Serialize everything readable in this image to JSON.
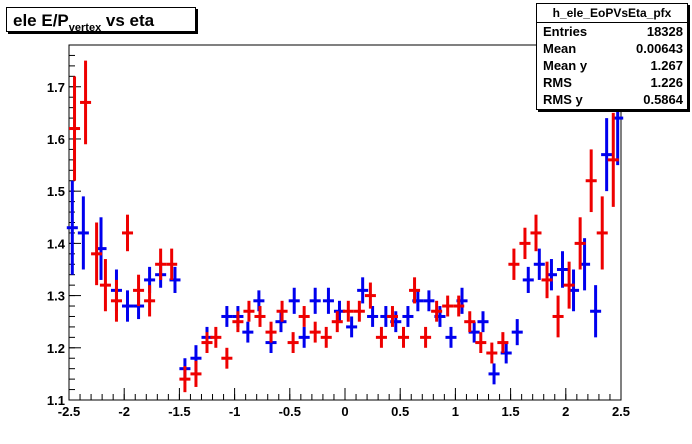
{
  "title": {
    "main": "ele E/P",
    "sub": "vertex",
    "suffix": "vs eta"
  },
  "stats": {
    "name": "h_ele_EoPVsEta_pfx",
    "rows": [
      {
        "key": "Entries",
        "value": "18328"
      },
      {
        "key": "Mean",
        "value": "0.00643"
      },
      {
        "key": "Mean y",
        "value": "1.267"
      },
      {
        "key": "RMS",
        "value": "1.226"
      },
      {
        "key": "RMS y",
        "value": "0.5864"
      }
    ]
  },
  "colors": {
    "blue": "#0000ee",
    "red": "#ee0000",
    "axis": "#000000"
  },
  "chart_data": {
    "type": "scatter",
    "title": "ele E/P vertex vs eta",
    "xlabel": "",
    "ylabel": "",
    "xlim": [
      -2.5,
      2.5
    ],
    "ylim": [
      1.1,
      1.78
    ],
    "xticks": [
      "-2.5",
      "-2",
      "-1.5",
      "-1",
      "-0.5",
      "0",
      "0.5",
      "1",
      "1.5",
      "2",
      "2.5"
    ],
    "yticks": [
      "1.1",
      "1.2",
      "1.3",
      "1.4",
      "1.5",
      "1.6",
      "1.7"
    ],
    "bin_half_width": 0.05,
    "series": [
      {
        "color": "blue",
        "points": [
          {
            "x": -2.47,
            "y": 1.43,
            "err": 0.09
          },
          {
            "x": -2.37,
            "y": 1.42,
            "err": 0.07
          },
          {
            "x": -2.21,
            "y": 1.39,
            "err": 0.06
          },
          {
            "x": -2.07,
            "y": 1.31,
            "err": 0.04
          },
          {
            "x": -1.97,
            "y": 1.28,
            "err": 0.03
          },
          {
            "x": -1.87,
            "y": 1.28,
            "err": 0.025
          },
          {
            "x": -1.77,
            "y": 1.33,
            "err": 0.025
          },
          {
            "x": -1.67,
            "y": 1.34,
            "err": 0.025
          },
          {
            "x": -1.54,
            "y": 1.33,
            "err": 0.025
          },
          {
            "x": -1.45,
            "y": 1.16,
            "err": 0.02
          },
          {
            "x": -1.35,
            "y": 1.18,
            "err": 0.025
          },
          {
            "x": -1.25,
            "y": 1.22,
            "err": 0.02
          },
          {
            "x": -1.07,
            "y": 1.26,
            "err": 0.02
          },
          {
            "x": -0.97,
            "y": 1.26,
            "err": 0.02
          },
          {
            "x": -0.88,
            "y": 1.23,
            "err": 0.02
          },
          {
            "x": -0.78,
            "y": 1.29,
            "err": 0.02
          },
          {
            "x": -0.67,
            "y": 1.21,
            "err": 0.02
          },
          {
            "x": -0.58,
            "y": 1.25,
            "err": 0.02
          },
          {
            "x": -0.46,
            "y": 1.29,
            "err": 0.025
          },
          {
            "x": -0.37,
            "y": 1.22,
            "err": 0.02
          },
          {
            "x": -0.27,
            "y": 1.29,
            "err": 0.025
          },
          {
            "x": -0.15,
            "y": 1.29,
            "err": 0.025
          },
          {
            "x": -0.05,
            "y": 1.27,
            "err": 0.02
          },
          {
            "x": 0.06,
            "y": 1.24,
            "err": 0.02
          },
          {
            "x": 0.16,
            "y": 1.31,
            "err": 0.025
          },
          {
            "x": 0.25,
            "y": 1.26,
            "err": 0.02
          },
          {
            "x": 0.37,
            "y": 1.26,
            "err": 0.02
          },
          {
            "x": 0.46,
            "y": 1.25,
            "err": 0.02
          },
          {
            "x": 0.57,
            "y": 1.26,
            "err": 0.02
          },
          {
            "x": 0.66,
            "y": 1.29,
            "err": 0.02
          },
          {
            "x": 0.76,
            "y": 1.29,
            "err": 0.02
          },
          {
            "x": 0.86,
            "y": 1.26,
            "err": 0.02
          },
          {
            "x": 0.96,
            "y": 1.22,
            "err": 0.02
          },
          {
            "x": 1.06,
            "y": 1.29,
            "err": 0.025
          },
          {
            "x": 1.17,
            "y": 1.23,
            "err": 0.02
          },
          {
            "x": 1.25,
            "y": 1.25,
            "err": 0.02
          },
          {
            "x": 1.35,
            "y": 1.15,
            "err": 0.02
          },
          {
            "x": 1.46,
            "y": 1.19,
            "err": 0.02
          },
          {
            "x": 1.56,
            "y": 1.23,
            "err": 0.025
          },
          {
            "x": 1.66,
            "y": 1.33,
            "err": 0.025
          },
          {
            "x": 1.76,
            "y": 1.36,
            "err": 0.03
          },
          {
            "x": 1.87,
            "y": 1.34,
            "err": 0.03
          },
          {
            "x": 1.97,
            "y": 1.35,
            "err": 0.035
          },
          {
            "x": 2.07,
            "y": 1.31,
            "err": 0.04
          },
          {
            "x": 2.17,
            "y": 1.36,
            "err": 0.05
          },
          {
            "x": 2.27,
            "y": 1.27,
            "err": 0.05
          },
          {
            "x": 2.37,
            "y": 1.57,
            "err": 0.07
          },
          {
            "x": 2.47,
            "y": 1.64,
            "err": 0.09
          }
        ]
      },
      {
        "color": "red",
        "points": [
          {
            "x": -2.45,
            "y": 1.62,
            "err": 0.1
          },
          {
            "x": -2.35,
            "y": 1.67,
            "err": 0.08
          },
          {
            "x": -2.25,
            "y": 1.38,
            "err": 0.06
          },
          {
            "x": -2.17,
            "y": 1.32,
            "err": 0.05
          },
          {
            "x": -2.07,
            "y": 1.29,
            "err": 0.04
          },
          {
            "x": -1.97,
            "y": 1.42,
            "err": 0.035
          },
          {
            "x": -1.87,
            "y": 1.31,
            "err": 0.03
          },
          {
            "x": -1.77,
            "y": 1.29,
            "err": 0.03
          },
          {
            "x": -1.67,
            "y": 1.36,
            "err": 0.03
          },
          {
            "x": -1.57,
            "y": 1.36,
            "err": 0.03
          },
          {
            "x": -1.45,
            "y": 1.14,
            "err": 0.025
          },
          {
            "x": -1.35,
            "y": 1.15,
            "err": 0.025
          },
          {
            "x": -1.25,
            "y": 1.21,
            "err": 0.02
          },
          {
            "x": -1.17,
            "y": 1.22,
            "err": 0.02
          },
          {
            "x": -1.07,
            "y": 1.18,
            "err": 0.02
          },
          {
            "x": -0.97,
            "y": 1.25,
            "err": 0.02
          },
          {
            "x": -0.87,
            "y": 1.27,
            "err": 0.02
          },
          {
            "x": -0.77,
            "y": 1.26,
            "err": 0.02
          },
          {
            "x": -0.67,
            "y": 1.23,
            "err": 0.02
          },
          {
            "x": -0.57,
            "y": 1.27,
            "err": 0.02
          },
          {
            "x": -0.47,
            "y": 1.21,
            "err": 0.02
          },
          {
            "x": -0.37,
            "y": 1.26,
            "err": 0.02
          },
          {
            "x": -0.27,
            "y": 1.23,
            "err": 0.02
          },
          {
            "x": -0.17,
            "y": 1.22,
            "err": 0.02
          },
          {
            "x": -0.07,
            "y": 1.25,
            "err": 0.02
          },
          {
            "x": 0.03,
            "y": 1.27,
            "err": 0.02
          },
          {
            "x": 0.13,
            "y": 1.27,
            "err": 0.02
          },
          {
            "x": 0.23,
            "y": 1.3,
            "err": 0.025
          },
          {
            "x": 0.33,
            "y": 1.22,
            "err": 0.02
          },
          {
            "x": 0.43,
            "y": 1.26,
            "err": 0.02
          },
          {
            "x": 0.53,
            "y": 1.22,
            "err": 0.02
          },
          {
            "x": 0.63,
            "y": 1.31,
            "err": 0.025
          },
          {
            "x": 0.73,
            "y": 1.22,
            "err": 0.02
          },
          {
            "x": 0.83,
            "y": 1.27,
            "err": 0.02
          },
          {
            "x": 0.93,
            "y": 1.28,
            "err": 0.02
          },
          {
            "x": 1.03,
            "y": 1.28,
            "err": 0.02
          },
          {
            "x": 1.13,
            "y": 1.25,
            "err": 0.02
          },
          {
            "x": 1.23,
            "y": 1.21,
            "err": 0.02
          },
          {
            "x": 1.33,
            "y": 1.19,
            "err": 0.02
          },
          {
            "x": 1.43,
            "y": 1.21,
            "err": 0.02
          },
          {
            "x": 1.53,
            "y": 1.36,
            "err": 0.03
          },
          {
            "x": 1.63,
            "y": 1.4,
            "err": 0.03
          },
          {
            "x": 1.73,
            "y": 1.42,
            "err": 0.035
          },
          {
            "x": 1.83,
            "y": 1.33,
            "err": 0.035
          },
          {
            "x": 1.93,
            "y": 1.26,
            "err": 0.04
          },
          {
            "x": 2.03,
            "y": 1.32,
            "err": 0.045
          },
          {
            "x": 2.13,
            "y": 1.4,
            "err": 0.05
          },
          {
            "x": 2.23,
            "y": 1.52,
            "err": 0.06
          },
          {
            "x": 2.33,
            "y": 1.42,
            "err": 0.07
          },
          {
            "x": 2.43,
            "y": 1.56,
            "err": 0.09
          }
        ]
      }
    ]
  }
}
